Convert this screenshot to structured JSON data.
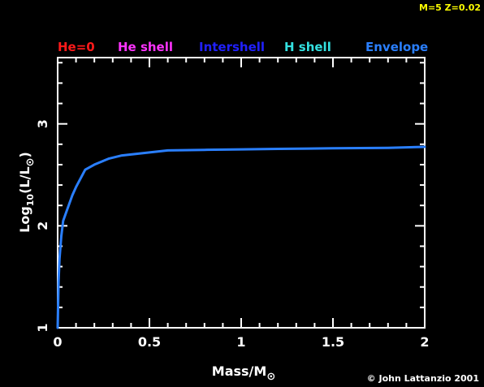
{
  "header": {
    "model_info": "M=5 Z=0.02",
    "model_info_color": "#ffff00"
  },
  "legend": [
    {
      "label": "He=0",
      "color": "#ff1a1a"
    },
    {
      "label": "He shell",
      "color": "#ff33ff"
    },
    {
      "label": "Intershell",
      "color": "#2020ff"
    },
    {
      "label": "H shell",
      "color": "#33e0e0"
    },
    {
      "label": "Envelope",
      "color": "#2a7fff"
    }
  ],
  "footer": {
    "credit": "© John Lattanzio 2001"
  },
  "chart_data": {
    "type": "line",
    "xlabel": "Mass/M",
    "xlabel_symbol": "⊙",
    "ylabel": "Log",
    "ylabel_sub": "10",
    "ylabel_rest": "(L/L",
    "ylabel_symbol": "⊙",
    "ylabel_close": ")",
    "xlim": [
      0,
      2
    ],
    "ylim": [
      1,
      3.65
    ],
    "x_ticks": [
      0,
      0.5,
      1,
      1.5,
      2
    ],
    "x_tick_labels": [
      "0",
      "0.5",
      "1",
      "1.5",
      "2"
    ],
    "y_ticks": [
      1,
      2,
      3
    ],
    "y_tick_labels": [
      "1",
      "2",
      "3"
    ],
    "x_minor_step": 0.1,
    "y_minor_step": 0.2,
    "series": [
      {
        "color": "#2a7fff",
        "x": [
          0.0,
          0.005,
          0.01,
          0.02,
          0.03,
          0.05,
          0.08,
          0.1,
          0.15,
          0.2,
          0.28,
          0.35,
          0.5,
          0.6,
          0.8,
          1.0,
          1.2,
          1.5,
          1.8,
          2.0
        ],
        "y": [
          1.0,
          1.45,
          1.68,
          1.9,
          2.05,
          2.15,
          2.3,
          2.38,
          2.55,
          2.6,
          2.66,
          2.69,
          2.72,
          2.74,
          2.745,
          2.75,
          2.755,
          2.76,
          2.765,
          2.775
        ]
      }
    ]
  }
}
